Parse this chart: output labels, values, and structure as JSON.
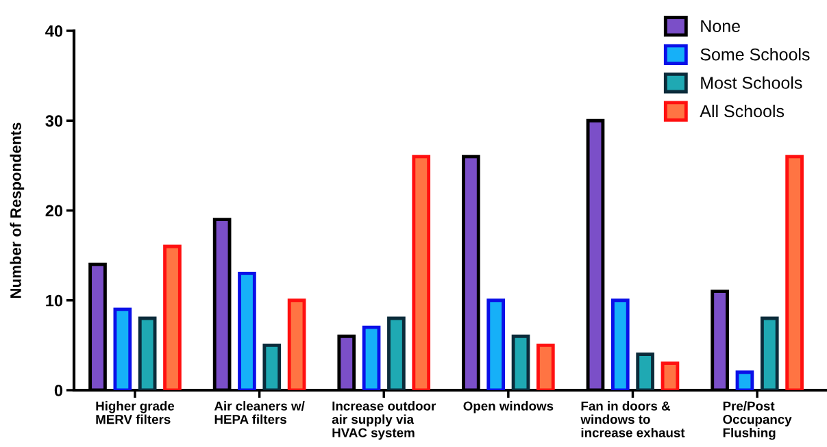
{
  "chart_data": {
    "type": "bar",
    "ylabel": "Number of Respondents",
    "categories": [
      "Higher grade\nMERV filters",
      "Air cleaners w/\nHEPA filters",
      "Increase outdoor\nair supply via\nHVAC system",
      "Open windows",
      "Fan in doors &\nwindows to\nincrease exhaust",
      "Pre/Post\nOccupancy\nFlushing"
    ],
    "series": [
      {
        "name": "None",
        "color": "#7b4fc8",
        "values": [
          14,
          19,
          6,
          26,
          30,
          11
        ]
      },
      {
        "name": "Some Schools",
        "color": "#16b0f8",
        "values": [
          9,
          13,
          7,
          10,
          10,
          2
        ]
      },
      {
        "name": "Most Schools",
        "color": "#1fa9b3",
        "values": [
          8,
          5,
          8,
          6,
          4,
          8
        ]
      },
      {
        "name": "All Schools",
        "color": "#ff7443",
        "values": [
          16,
          10,
          26,
          5,
          3,
          26
        ]
      }
    ],
    "ylim": [
      0,
      40
    ],
    "yticks": [
      0,
      10,
      20,
      30,
      40
    ],
    "grid": false,
    "legend": "top right"
  }
}
